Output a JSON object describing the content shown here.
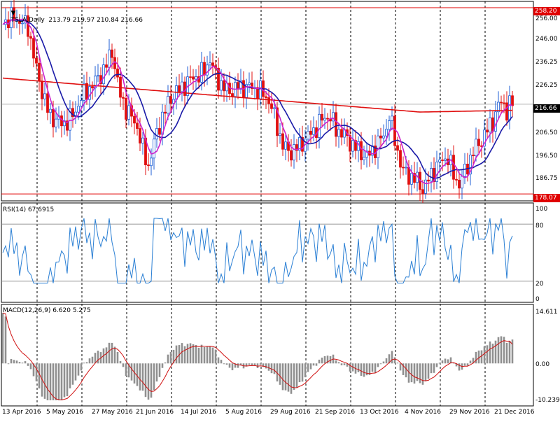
{
  "header": {
    "symbol_line": "TSLA,Daily  213.79 219.97 210.84 216.66",
    "rsi_line": "RSI(14) 67.6915",
    "macd_line": "MACD(12,26,9) 6.620 5.275"
  },
  "price_axis": [
    "256.00",
    "246.00",
    "236.25",
    "226.25",
    "216.66",
    "206.50",
    "196.50",
    "186.75",
    "178.07"
  ],
  "price_tags": {
    "current": "216.66",
    "high": "258.20",
    "low": "178.07",
    "high_color": "#e00000",
    "current_color": "#000000",
    "low_color": "#e00000"
  },
  "rsi_axis": [
    "100",
    "80",
    "20",
    "0"
  ],
  "macd_axis": [
    "14.611",
    "0.00",
    "-10.239"
  ],
  "date_labels": [
    "13 Apr 2016",
    "5 May 2016",
    "27 May 2016",
    "21 Jun 2016",
    "14 Jul 2016",
    "5 Aug 2016",
    "29 Aug 2016",
    "21 Sep 2016",
    "13 Oct 2016",
    "4 Nov 2016",
    "29 Nov 2016",
    "21 Dec 2016"
  ],
  "colors": {
    "bull": "#1f5fd6",
    "bear": "#e01010",
    "ma_slow": "#e01010",
    "ma_mid": "#1a1aa8",
    "ma_fast": "#cc22cc",
    "rsi": "#2a7fd4",
    "macd_hist": "#909090",
    "macd_signal": "#d01010"
  },
  "chart_data": [
    {
      "type": "candlestick",
      "title": "TSLA,Daily",
      "ylim": [
        175,
        260
      ],
      "x": [
        "13 Apr 2016",
        "5 May 2016",
        "27 May 2016",
        "21 Jun 2016",
        "14 Jul 2016",
        "5 Aug 2016",
        "29 Aug 2016",
        "21 Sep 2016",
        "13 Oct 2016",
        "4 Nov 2016",
        "29 Nov 2016",
        "21 Dec 2016"
      ],
      "close_approx": [
        252,
        212,
        220,
        198,
        224,
        230,
        202,
        208,
        202,
        182,
        189,
        216.66
      ],
      "last_bar": {
        "open": 213.79,
        "high": 219.97,
        "low": 210.84,
        "close": 216.66
      },
      "levels": {
        "high": 258.2,
        "low": 178.07
      }
    },
    {
      "type": "line",
      "title": "RSI(14)",
      "value": 67.6915,
      "ylim": [
        0,
        100
      ],
      "levels": [
        80,
        20
      ]
    },
    {
      "type": "bar",
      "title": "MACD(12,26,9)",
      "macd": 6.62,
      "signal": 5.275,
      "ylim": [
        -10.239,
        14.611
      ]
    }
  ]
}
